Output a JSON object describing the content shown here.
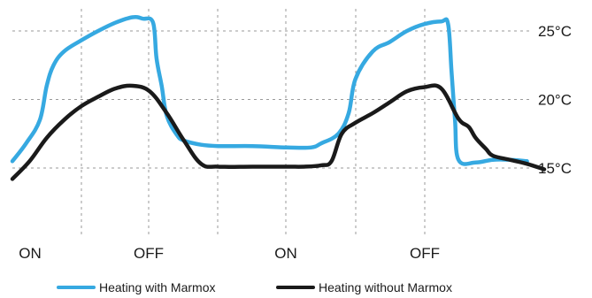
{
  "chart_data": {
    "type": "line",
    "title": "",
    "xlabel": "",
    "ylabel": "",
    "x_ticks": [
      "ON",
      "OFF",
      "ON",
      "OFF"
    ],
    "x_tick_positions": [
      1.5,
      4.5,
      8.5,
      12.5
    ],
    "y_ticks": [
      "15°C",
      "20°C",
      "25°C"
    ],
    "y_tick_values": [
      15,
      20,
      25
    ],
    "xlim": [
      0,
      15.5
    ],
    "ylim": [
      12,
      27
    ],
    "grid": true,
    "legend_position": "bottom",
    "series": [
      {
        "name": "Heating with Marmox",
        "color": "#36a9e1",
        "x": [
          0,
          0.4,
          0.8,
          1.0,
          1.2,
          1.5,
          2.0,
          2.5,
          3.0,
          3.5,
          3.8,
          4.1,
          4.2,
          4.35,
          4.5,
          4.8,
          5.0,
          5.5,
          6.0,
          7.0,
          8.0,
          8.7,
          9.0,
          9.5,
          9.8,
          10.0,
          10.5,
          11.0,
          11.5,
          12.0,
          12.5,
          12.7,
          12.8,
          12.9,
          13.0,
          13.5,
          14.0,
          14.5,
          15.0
        ],
        "y": [
          15.5,
          16.8,
          18.5,
          21.0,
          22.5,
          23.5,
          24.3,
          25.0,
          25.6,
          26.0,
          25.9,
          25.6,
          23.0,
          21.0,
          18.8,
          17.4,
          17.0,
          16.7,
          16.6,
          16.6,
          16.5,
          16.5,
          16.8,
          17.5,
          19.0,
          21.5,
          23.5,
          24.2,
          25.0,
          25.5,
          25.7,
          25.5,
          22.0,
          18.5,
          15.6,
          15.4,
          15.6,
          15.6,
          15.5
        ]
      },
      {
        "name": "Heating without Marmox",
        "color": "#1a1a1a",
        "x": [
          0,
          0.5,
          1.0,
          1.5,
          2.0,
          2.5,
          3.0,
          3.5,
          4.0,
          4.5,
          5.0,
          5.5,
          6.0,
          7.0,
          8.0,
          8.5,
          9.0,
          9.3,
          9.6,
          10.0,
          10.5,
          11.0,
          11.5,
          12.0,
          12.5,
          13.0,
          13.3,
          13.5,
          13.8,
          14.0,
          14.5,
          15.0,
          15.5
        ],
        "y": [
          14.2,
          15.5,
          17.2,
          18.5,
          19.5,
          20.2,
          20.8,
          21.0,
          20.6,
          19.0,
          17.0,
          15.3,
          15.1,
          15.1,
          15.1,
          15.1,
          15.2,
          15.5,
          17.5,
          18.3,
          19.0,
          19.8,
          20.6,
          20.9,
          20.8,
          18.6,
          18.0,
          17.2,
          16.4,
          15.9,
          15.6,
          15.3,
          14.9
        ]
      }
    ]
  }
}
